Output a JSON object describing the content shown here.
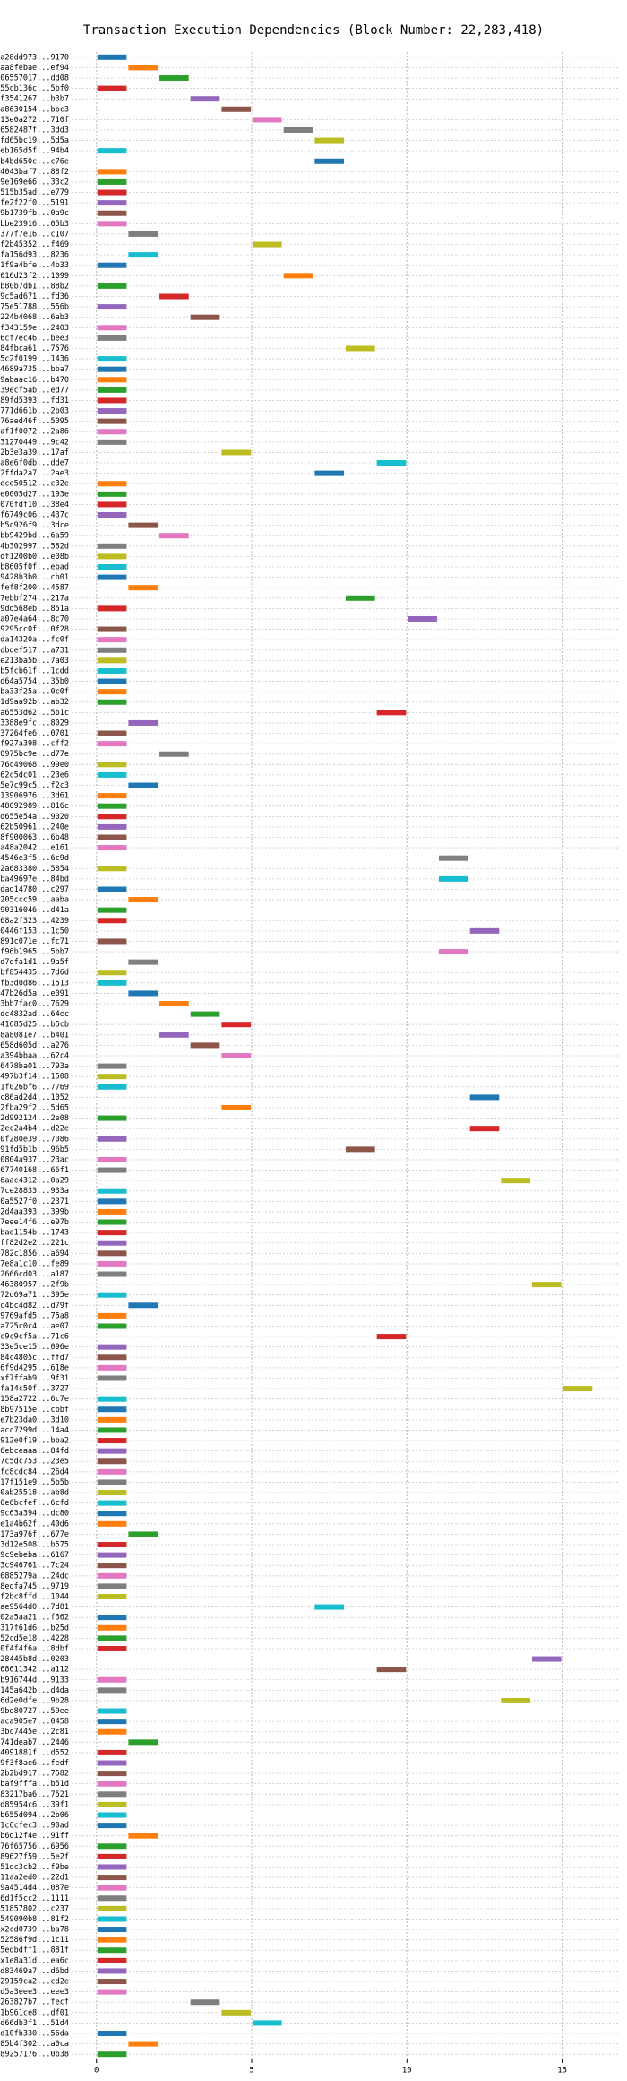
{
  "chart_data": {
    "type": "gantt",
    "title": "Transaction Execution Dependencies (Block Number: 22,283,418)",
    "categories": [
      "0xa28dd973...9170",
      "0xaa8febae...ef94",
      "0x06557017...dd08",
      "0x55cb136c...5bf0",
      "0xf3541267...b3b7",
      "0xa8630154...bbc3",
      "0x13e0a272...710f",
      "0x6582487f...3dd3",
      "0xfd65bc19...5d5a",
      "0xeb165d5f...94b4",
      "0xb4bd650c...c76e",
      "0x4043baf7...88f2",
      "0x9e169e66...33c2",
      "0x515b35ad...e779",
      "0xfe2f22f0...5191",
      "0x9b1739fb...0a9c",
      "0xbbe23916...05b3",
      "0x377f7e16...c107",
      "0xf2b45352...f469",
      "0xfa156d93...8236",
      "0x1f9a4bfe...4b33",
      "0x016d23f2...1099",
      "0xb80b7db1...88b2",
      "0x9c5ad671...fd36",
      "0x75e51788...556b",
      "0x224b4068...6ab3",
      "0xf343159e...2403",
      "0x6cf7ec46...bee3",
      "0x84fbca61...7576",
      "0x5c2f0199...1436",
      "0x4689a735...bba7",
      "0x9abaac16...b470",
      "0x39ecf5ab...ed77",
      "0x89fd5393...fd31",
      "0x771d661b...2b03",
      "0x76aed46f...5095",
      "0xaf1f0072...2a86",
      "0x31270449...9c42",
      "0x2b3e3a39...17af",
      "0xa8e6f0db...dde7",
      "0x2ffda2a7...2ae3",
      "0xece50512...c32e",
      "0xe0005d27...193e",
      "0x070fdf10...38e4",
      "0xf6749c06...437c",
      "0xb5c926f9...3dce",
      "0xbb9429bd...6a59",
      "0x4b302997...582d",
      "0xdf1200b0...e08b",
      "0xb8605f0f...ebad",
      "0x9428b3b0...cb01",
      "0xfef8f200...4587",
      "0x7ebbf274...217a",
      "0x9dd568eb...851a",
      "0xa07e4a64...8c70",
      "0x9295cc0f...0f28",
      "0xda14320a...fc0f",
      "0xdbdef517...a731",
      "0xe213ba5b...7a03",
      "0xb5fcb61f...1cdd",
      "0xd64a5754...35b0",
      "0xba33f25a...0c0f",
      "0x1d9aa92b...ab32",
      "0xa6553d62...5b1c",
      "0x3388e9fc...8029",
      "0x37264fe6...0701",
      "0xf927a398...cff2",
      "0x0975bc9e...d77e",
      "0x76c49068...99e0",
      "0x62c5dc01...23e6",
      "0x5e7c99c5...f2c3",
      "0x13906976...3d61",
      "0x48092989...816c",
      "0xd655e54a...9020",
      "0x62b50961...240e",
      "0x8f900063...6b48",
      "0xa48a2042...e161",
      "0x4546e3f5...6c9d",
      "0x2a683380...5854",
      "0xba49697e...84bd",
      "0xdad14780...c297",
      "0x205ccc59...aaba",
      "0x90316046...d41a",
      "0x68a2f323...4239",
      "0x0446f153...1c50",
      "0x891c071e...fc71",
      "0xf96b1965...5bb7",
      "0xd7dfa1d1...9a5f",
      "0xbf854435...7d6d",
      "0xfb3d0d86...1513",
      "0x47b26d5a...e091",
      "0x3bb7fac0...7629",
      "0xdc4832ad...64ec",
      "0x41685d25...b5cb",
      "0x8a8081e7...b401",
      "0x658d605d...a276",
      "0xa394bbaa...62c4",
      "0x6478ba01...793a",
      "0x497b3f14...1508",
      "0x1f026bf6...7769",
      "0xc86ad2d4...1052",
      "0x2fba29f2...5d65",
      "0x2d992124...2e08",
      "0x2ec2a4b4...d22e",
      "0x0f280e39...7086",
      "0x91fd5b1b...96b5",
      "0x0804a937...23ac",
      "0x67740168...66f1",
      "0x6aac4312...0a29",
      "0x7ce28833...933a",
      "0x0a5527f0...2371",
      "0x2d4aa393...399b",
      "0x7eee14f6...e97b",
      "0xbae1154b...1743",
      "0xff82d2e2...221c",
      "0x782c1856...a694",
      "0x7e8a1c10...fe89",
      "0x2666cd03...a187",
      "0x46380957...2f9b",
      "0x72d69a71...395e",
      "0xc4bc4d82...d79f",
      "0x9769afd5...75a8",
      "0xa725c0c4...ae07",
      "0xc9c9cf5a...71c6",
      "0x33e5ce15...096e",
      "0x84c4805c...ffd7",
      "0x6f9d4295...618e",
      "0xf7ffab9...9f31",
      "0xfa14c50f...3727",
      "0x158a2722...6c7e",
      "0x8b97515e...cbbf",
      "0xe7b23da0...3d10",
      "0xacc7299d...14a4",
      "0x912e0f19...bba2",
      "0x6ebceaaa...84fd",
      "0x7c5dc753...23e5",
      "0xfc8cdc84...26d4",
      "0x17f151e9...5b5b",
      "0x0ab25518...ab8d",
      "0x0e6bcfef...6cfd",
      "0x9c63a394...dc80",
      "0xe1a4b62f...40d6",
      "0x173a976f...677e",
      "0x3d12e508...b575",
      "0x9c9ebeba...6167",
      "0x3c946761...7c24",
      "0x6885279a...24dc",
      "0x8edfa745...9719",
      "0xf2bc8ffd...1044",
      "0xae9564d0...7d81",
      "0x02a5aa21...f362",
      "0x317f61d6...b25d",
      "0x52cd5e18...4228",
      "0x0f4f4f6a...8dbf",
      "0x28445b8d...0203",
      "0x68611342...a112",
      "0xb916744d...9133",
      "0x145a642b...d4da",
      "0x6d2e0dfe...9b28",
      "0x9bd80727...59ee",
      "0xaca905e7...0458",
      "0x3bc7445e...2c81",
      "0x741deab7...2446",
      "0x4091881f...d552",
      "0x9f3f8ae6...fedf",
      "0x2b2bd917...7582",
      "0xbaf9fffa...b51d",
      "0x83217ba6...7521",
      "0xd85954c6...39f1",
      "0xb655d094...2b06",
      "0x1c6cfec3...90ad",
      "0xb6d12f4e...91ff",
      "0x76f65756...6956",
      "0x89627f59...5e2f",
      "0x51dc3cb2...f9be",
      "0x11aa2ed0...22d1",
      "0x9a4514d4...087e",
      "0x6d1f5cc2...1111",
      "0x51857802...c237",
      "0x549090b8...81f2",
      "0x2cd0739...ba78",
      "0x52586f9d...1c11",
      "0x5edbdff1...881f",
      "0x1e8a31d...ea6c",
      "0xd83469a7...d6bd",
      "0x29159ca2...cd2e",
      "0xd5a3eee3...eee3",
      "0x263827b7...fecf",
      "0x1b961ce8...df01",
      "0xd66db3f1...51d4",
      "0xd10fb330...56da",
      "0x85b4f302...a0ca",
      "0x89257176...0b38"
    ],
    "starts": [
      0,
      1,
      2,
      0,
      3,
      4,
      5,
      6,
      7,
      0,
      7,
      0,
      0,
      0,
      0,
      0,
      0,
      1,
      5,
      1,
      0,
      6,
      0,
      2,
      0,
      3,
      0,
      0,
      8,
      0,
      0,
      0,
      0,
      0,
      0,
      0,
      0,
      0,
      4,
      9,
      7,
      0,
      0,
      0,
      0,
      1,
      2,
      0,
      0,
      0,
      0,
      1,
      8,
      0,
      10,
      0,
      0,
      0,
      0,
      0,
      0,
      0,
      0,
      9,
      1,
      0,
      0,
      2,
      0,
      0,
      1,
      0,
      0,
      0,
      0,
      0,
      0,
      11,
      0,
      11,
      0,
      1,
      0,
      0,
      12,
      0,
      11,
      1,
      0,
      0,
      1,
      2,
      3,
      4,
      2,
      3,
      4,
      0,
      0,
      0,
      12,
      4,
      0,
      12,
      0,
      8,
      0,
      0,
      13,
      0,
      0,
      0,
      0,
      0,
      0,
      0,
      0,
      0,
      14,
      0,
      1,
      0,
      0,
      9,
      0,
      0,
      0,
      0,
      15,
      0,
      0,
      0,
      0,
      0,
      0,
      0,
      0,
      0,
      0,
      0,
      0,
      0,
      1,
      0,
      0,
      0,
      0,
      0,
      0,
      7,
      0,
      0,
      0,
      0,
      14,
      9,
      0,
      0,
      13,
      0,
      0,
      0,
      1,
      0,
      0,
      0,
      0,
      0,
      0,
      0,
      0,
      1,
      0,
      0,
      0,
      0,
      0,
      0,
      0,
      0,
      0,
      0,
      0,
      0,
      0,
      0,
      0,
      3,
      4,
      5,
      0,
      1,
      0
    ],
    "ends": [
      1,
      2,
      3,
      1,
      4,
      5,
      6,
      7,
      8,
      1,
      8,
      1,
      1,
      1,
      1,
      1,
      1,
      2,
      6,
      2,
      1,
      7,
      1,
      3,
      1,
      4,
      1,
      1,
      9,
      1,
      1,
      1,
      1,
      1,
      1,
      1,
      1,
      1,
      5,
      10,
      8,
      1,
      1,
      1,
      1,
      2,
      3,
      1,
      1,
      1,
      1,
      2,
      9,
      1,
      11,
      1,
      1,
      1,
      1,
      1,
      1,
      1,
      1,
      10,
      2,
      1,
      1,
      3,
      1,
      1,
      2,
      1,
      1,
      1,
      1,
      1,
      1,
      12,
      1,
      12,
      1,
      2,
      1,
      1,
      13,
      1,
      12,
      2,
      1,
      1,
      2,
      3,
      4,
      5,
      3,
      4,
      5,
      1,
      1,
      1,
      13,
      5,
      1,
      13,
      1,
      9,
      1,
      1,
      14,
      1,
      1,
      1,
      1,
      1,
      1,
      1,
      1,
      1,
      15,
      1,
      2,
      1,
      1,
      10,
      1,
      1,
      1,
      1,
      16,
      1,
      1,
      1,
      1,
      1,
      1,
      1,
      1,
      1,
      1,
      1,
      1,
      1,
      2,
      1,
      1,
      1,
      1,
      1,
      1,
      8,
      1,
      1,
      1,
      1,
      15,
      10,
      1,
      1,
      14,
      1,
      1,
      1,
      2,
      1,
      1,
      1,
      1,
      1,
      1,
      1,
      1,
      2,
      1,
      1,
      1,
      1,
      1,
      1,
      1,
      1,
      1,
      1,
      1,
      1,
      1,
      1,
      1,
      4,
      5,
      6,
      1,
      2,
      1
    ],
    "colors": [
      "#1f77b4",
      "#ff7f0e",
      "#2ca02c",
      "#d62728",
      "#9467bd",
      "#8c564b",
      "#e377c2",
      "#7f7f7f",
      "#bcbd22",
      "#17becf"
    ],
    "xlim": [
      -0.8,
      16.8
    ],
    "xticks": [
      0,
      5,
      10,
      15
    ],
    "grid": true
  }
}
